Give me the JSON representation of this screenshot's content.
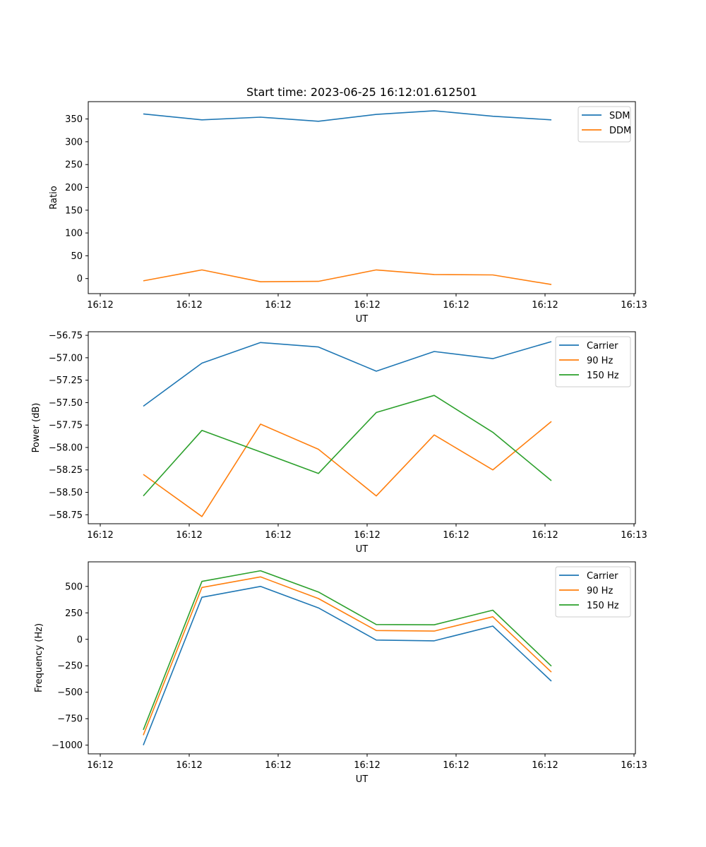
{
  "chart_data": [
    {
      "type": "line",
      "title": "Start time: 2023-06-25 16:12:01.612501",
      "xlabel": "UT",
      "ylabel": "Ratio",
      "x_tick_labels": [
        "16:12",
        "16:12",
        "16:12",
        "16:12",
        "16:12",
        "16:12",
        "16:12",
        "16:13"
      ],
      "y_ticks": [
        0,
        50,
        100,
        150,
        200,
        250,
        300,
        350
      ],
      "ylim": [
        -33,
        388
      ],
      "legend_position": "top-right",
      "series": [
        {
          "name": "SDM",
          "color": "#1f77b4",
          "values": [
            361,
            348,
            354,
            345,
            360,
            368,
            356,
            348
          ]
        },
        {
          "name": "DDM",
          "color": "#ff7f0e",
          "values": [
            -5,
            19,
            -7,
            -6,
            19,
            9,
            8,
            -13
          ]
        }
      ]
    },
    {
      "type": "line",
      "title": "",
      "xlabel": "UT",
      "ylabel": "Power (dB)",
      "x_tick_labels": [
        "16:12",
        "16:12",
        "16:12",
        "16:12",
        "16:12",
        "16:12",
        "16:12",
        "16:13"
      ],
      "y_ticks": [
        -58.75,
        -58.5,
        -58.25,
        -58.0,
        -57.75,
        -57.5,
        -57.25,
        -57.0,
        -56.75
      ],
      "y_tick_labels": [
        "−58.75",
        "−58.50",
        "−58.25",
        "−58.00",
        "−57.75",
        "−57.50",
        "−57.25",
        "−57.00",
        "−56.75"
      ],
      "ylim": [
        -58.85,
        -56.71
      ],
      "legend_position": "top-right",
      "series": [
        {
          "name": "Carrier",
          "color": "#1f77b4",
          "values": [
            -57.54,
            -57.06,
            -56.83,
            -56.88,
            -57.15,
            -56.93,
            -57.01,
            -56.82
          ]
        },
        {
          "name": "90 Hz",
          "color": "#ff7f0e",
          "values": [
            -58.3,
            -58.77,
            -57.74,
            -58.02,
            -58.54,
            -57.86,
            -58.25,
            -57.71
          ]
        },
        {
          "name": "150 Hz",
          "color": "#2ca02c",
          "values": [
            -58.54,
            -57.81,
            -58.05,
            -58.29,
            -57.61,
            -57.42,
            -57.83,
            -58.37
          ]
        }
      ]
    },
    {
      "type": "line",
      "title": "",
      "xlabel": "UT",
      "ylabel": "Frequency (Hz)",
      "x_tick_labels": [
        "16:12",
        "16:12",
        "16:12",
        "16:12",
        "16:12",
        "16:12",
        "16:12",
        "16:13"
      ],
      "y_ticks": [
        -1000,
        -750,
        -500,
        -250,
        0,
        250,
        500
      ],
      "y_tick_labels": [
        "−1000",
        "−750",
        "−500",
        "−250",
        "0",
        "250",
        "500"
      ],
      "ylim": [
        -1082,
        732
      ],
      "legend_position": "top-right",
      "series": [
        {
          "name": "Carrier",
          "color": "#1f77b4",
          "values": [
            -1000,
            397,
            500,
            297,
            -7,
            -14,
            125,
            -395
          ]
        },
        {
          "name": "90 Hz",
          "color": "#ff7f0e",
          "values": [
            -905,
            490,
            590,
            385,
            83,
            78,
            213,
            -310
          ]
        },
        {
          "name": "150 Hz",
          "color": "#2ca02c",
          "values": [
            -855,
            547,
            648,
            447,
            140,
            137,
            275,
            -253
          ]
        }
      ]
    }
  ]
}
